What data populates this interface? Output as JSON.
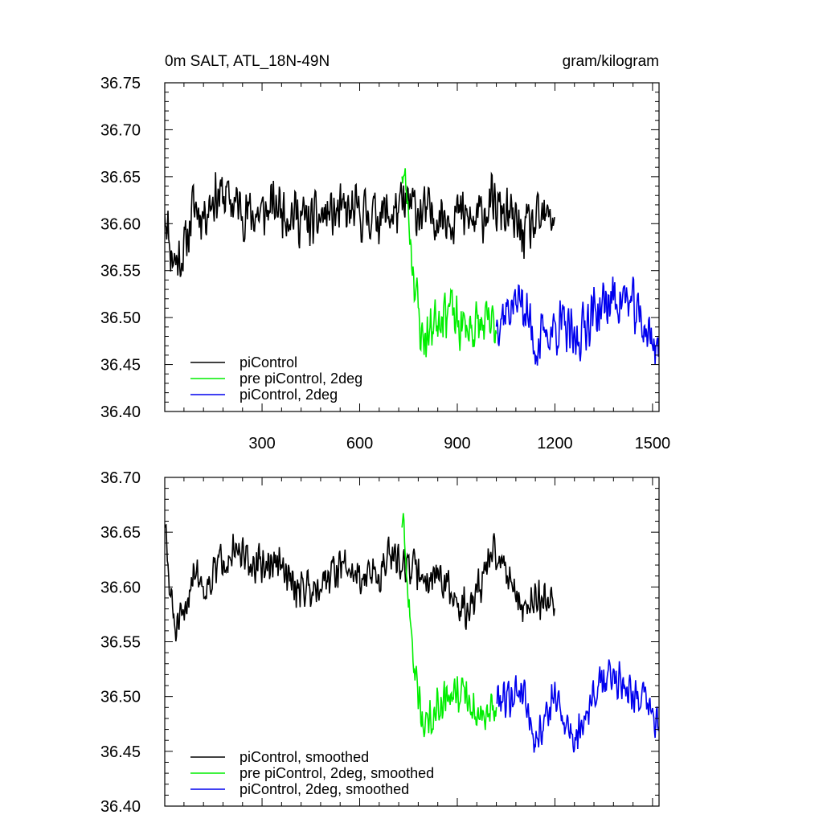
{
  "chart_data": [
    {
      "type": "line",
      "title_left": "0m SALT, ATL_18N-49N",
      "title_right": "gram/kilogram",
      "xlim": [
        1,
        1520
      ],
      "ylim": [
        36.4,
        36.75
      ],
      "xticks": [
        300,
        600,
        900,
        1200,
        1500
      ],
      "xtick_labels": [
        "300",
        "600",
        "900",
        "1200",
        "1500"
      ],
      "yticks": [
        36.4,
        36.45,
        36.5,
        36.55,
        36.6,
        36.65,
        36.7,
        36.75
      ],
      "ytick_labels": [
        "36.40",
        "36.45",
        "36.50",
        "36.55",
        "36.60",
        "36.65",
        "36.70",
        "36.75"
      ],
      "legend_position": "bottom-left",
      "series": [
        {
          "name": "piControl",
          "color": "#000000",
          "x_start": 1,
          "x_end": 1200,
          "anchors": [
            [
              1,
              36.62
            ],
            [
              20,
              36.57
            ],
            [
              35,
              36.56
            ],
            [
              60,
              36.57
            ],
            [
              90,
              36.62
            ],
            [
              120,
              36.61
            ],
            [
              150,
              36.63
            ],
            [
              180,
              36.63
            ],
            [
              220,
              36.62
            ],
            [
              260,
              36.61
            ],
            [
              300,
              36.61
            ],
            [
              350,
              36.62
            ],
            [
              400,
              36.61
            ],
            [
              450,
              36.6
            ],
            [
              500,
              36.61
            ],
            [
              550,
              36.61
            ],
            [
              600,
              36.61
            ],
            [
              650,
              36.61
            ],
            [
              700,
              36.61
            ],
            [
              750,
              36.62
            ],
            [
              800,
              36.61
            ],
            [
              850,
              36.61
            ],
            [
              900,
              36.61
            ],
            [
              950,
              36.6
            ],
            [
              1000,
              36.62
            ],
            [
              1050,
              36.61
            ],
            [
              1100,
              36.59
            ],
            [
              1150,
              36.6
            ],
            [
              1200,
              36.61
            ]
          ],
          "amplitude": 0.035,
          "noise_seed": 11
        },
        {
          "name": "pre piControl, 2deg",
          "color": "#00ee00",
          "x_start": 730,
          "x_end": 1020,
          "anchors": [
            [
              730,
              36.66
            ],
            [
              745,
              36.63
            ],
            [
              760,
              36.57
            ],
            [
              775,
              36.52
            ],
            [
              790,
              36.48
            ],
            [
              810,
              36.48
            ],
            [
              830,
              36.5
            ],
            [
              860,
              36.51
            ],
            [
              880,
              36.51
            ],
            [
              900,
              36.49
            ],
            [
              930,
              36.49
            ],
            [
              960,
              36.49
            ],
            [
              990,
              36.49
            ],
            [
              1020,
              36.49
            ]
          ],
          "amplitude": 0.035,
          "noise_seed": 23
        },
        {
          "name": "piControl, 2deg",
          "color": "#0000ee",
          "x_start": 1020,
          "x_end": 1520,
          "anchors": [
            [
              1020,
              36.5
            ],
            [
              1060,
              36.51
            ],
            [
              1100,
              36.52
            ],
            [
              1140,
              36.47
            ],
            [
              1170,
              36.48
            ],
            [
              1200,
              36.49
            ],
            [
              1230,
              36.49
            ],
            [
              1260,
              36.47
            ],
            [
              1300,
              36.5
            ],
            [
              1340,
              36.51
            ],
            [
              1380,
              36.52
            ],
            [
              1420,
              36.52
            ],
            [
              1460,
              36.5
            ],
            [
              1490,
              36.48
            ],
            [
              1520,
              36.47
            ]
          ],
          "amplitude": 0.035,
          "noise_seed": 37
        }
      ]
    },
    {
      "type": "line",
      "xlim": [
        1,
        1520
      ],
      "ylim": [
        36.4,
        36.7
      ],
      "xticks": [
        300,
        600,
        900,
        1200,
        1500
      ],
      "yticks": [
        36.4,
        36.45,
        36.5,
        36.55,
        36.6,
        36.65,
        36.7
      ],
      "ytick_labels": [
        "36.40",
        "36.45",
        "36.50",
        "36.55",
        "36.60",
        "36.65",
        "36.70"
      ],
      "legend_position": "bottom-left",
      "series": [
        {
          "name": "piControl, smoothed",
          "color": "#000000",
          "x_start": 1,
          "x_end": 1200,
          "anchors": [
            [
              1,
              36.66
            ],
            [
              15,
              36.6
            ],
            [
              35,
              36.56
            ],
            [
              60,
              36.57
            ],
            [
              90,
              36.62
            ],
            [
              120,
              36.6
            ],
            [
              150,
              36.61
            ],
            [
              180,
              36.63
            ],
            [
              220,
              36.63
            ],
            [
              260,
              36.62
            ],
            [
              300,
              36.62
            ],
            [
              350,
              36.62
            ],
            [
              400,
              36.6
            ],
            [
              450,
              36.6
            ],
            [
              500,
              36.61
            ],
            [
              550,
              36.62
            ],
            [
              600,
              36.61
            ],
            [
              650,
              36.61
            ],
            [
              700,
              36.63
            ],
            [
              750,
              36.62
            ],
            [
              800,
              36.61
            ],
            [
              850,
              36.61
            ],
            [
              900,
              36.58
            ],
            [
              940,
              36.58
            ],
            [
              980,
              36.61
            ],
            [
              1010,
              36.63
            ],
            [
              1050,
              36.62
            ],
            [
              1100,
              36.58
            ],
            [
              1150,
              36.59
            ],
            [
              1200,
              36.59
            ]
          ],
          "amplitude": 0.022,
          "noise_seed": 51
        },
        {
          "name": "pre piControl, 2deg, smoothed",
          "color": "#00ee00",
          "x_start": 730,
          "x_end": 1020,
          "anchors": [
            [
              730,
              36.66
            ],
            [
              745,
              36.61
            ],
            [
              760,
              36.55
            ],
            [
              780,
              36.5
            ],
            [
              800,
              36.47
            ],
            [
              830,
              36.49
            ],
            [
              860,
              36.5
            ],
            [
              890,
              36.51
            ],
            [
              920,
              36.5
            ],
            [
              950,
              36.49
            ],
            [
              985,
              36.48
            ],
            [
              1020,
              36.49
            ]
          ],
          "amplitude": 0.022,
          "noise_seed": 63
        },
        {
          "name": "piControl, 2deg, smoothed",
          "color": "#0000ee",
          "x_start": 1020,
          "x_end": 1520,
          "anchors": [
            [
              1020,
              36.5
            ],
            [
              1060,
              36.5
            ],
            [
              1100,
              36.51
            ],
            [
              1140,
              36.46
            ],
            [
              1170,
              36.48
            ],
            [
              1200,
              36.5
            ],
            [
              1230,
              36.48
            ],
            [
              1260,
              36.46
            ],
            [
              1300,
              36.49
            ],
            [
              1340,
              36.51
            ],
            [
              1380,
              36.52
            ],
            [
              1420,
              36.51
            ],
            [
              1460,
              36.5
            ],
            [
              1490,
              36.49
            ],
            [
              1520,
              36.47
            ]
          ],
          "amplitude": 0.022,
          "noise_seed": 79
        }
      ]
    }
  ]
}
